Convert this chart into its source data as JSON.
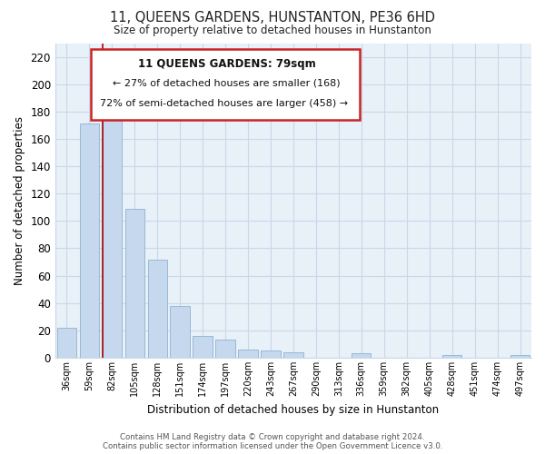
{
  "title": "11, QUEENS GARDENS, HUNSTANTON, PE36 6HD",
  "subtitle": "Size of property relative to detached houses in Hunstanton",
  "xlabel": "Distribution of detached houses by size in Hunstanton",
  "ylabel": "Number of detached properties",
  "bar_labels": [
    "36sqm",
    "59sqm",
    "82sqm",
    "105sqm",
    "128sqm",
    "151sqm",
    "174sqm",
    "197sqm",
    "220sqm",
    "243sqm",
    "267sqm",
    "290sqm",
    "313sqm",
    "336sqm",
    "359sqm",
    "382sqm",
    "405sqm",
    "428sqm",
    "451sqm",
    "474sqm",
    "497sqm"
  ],
  "bar_values": [
    22,
    171,
    179,
    109,
    72,
    38,
    16,
    13,
    6,
    5,
    4,
    0,
    0,
    3,
    0,
    0,
    0,
    2,
    0,
    0,
    2
  ],
  "bar_color": "#c5d8ed",
  "bar_edge_color": "#8cb4d2",
  "vertical_line_index": 2,
  "vertical_line_color": "#aa0000",
  "ylim": [
    0,
    230
  ],
  "yticks": [
    0,
    20,
    40,
    60,
    80,
    100,
    120,
    140,
    160,
    180,
    200,
    220
  ],
  "annotation_title": "11 QUEENS GARDENS: 79sqm",
  "annotation_line1": "← 27% of detached houses are smaller (168)",
  "annotation_line2": "72% of semi-detached houses are larger (458) →",
  "footer_line1": "Contains HM Land Registry data © Crown copyright and database right 2024.",
  "footer_line2": "Contains public sector information licensed under the Open Government Licence v3.0.",
  "grid_color": "#c8d8e8",
  "bg_color": "#e8f0f8",
  "fig_bg_color": "#ffffff"
}
